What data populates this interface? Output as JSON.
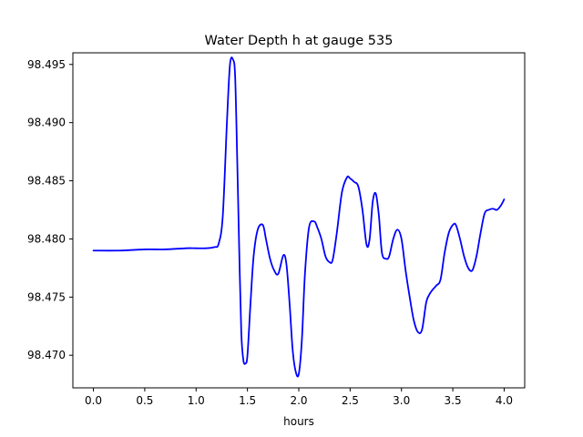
{
  "chart_data": {
    "type": "line",
    "title": "Water Depth h at gauge 535",
    "xlabel": "hours",
    "ylabel": "",
    "xlim": [
      -0.2,
      4.2
    ],
    "ylim": [
      98.4672,
      98.496
    ],
    "grid": false,
    "x_ticks": [
      0.0,
      0.5,
      1.0,
      1.5,
      2.0,
      2.5,
      3.0,
      3.5,
      4.0
    ],
    "x_tick_labels": [
      "0.0",
      "0.5",
      "1.0",
      "1.5",
      "2.0",
      "2.5",
      "3.0",
      "3.5",
      "4.0"
    ],
    "y_ticks": [
      98.47,
      98.475,
      98.48,
      98.485,
      98.49,
      98.495
    ],
    "y_tick_labels": [
      "98.470",
      "98.475",
      "98.480",
      "98.485",
      "98.490",
      "98.495"
    ],
    "series": [
      {
        "color": "#0000ff",
        "x": [
          0.0,
          0.25,
          0.5,
          0.7,
          0.9,
          1.0,
          1.1,
          1.18,
          1.22,
          1.26,
          1.3,
          1.33,
          1.36,
          1.38,
          1.4,
          1.42,
          1.44,
          1.46,
          1.48,
          1.5,
          1.53,
          1.56,
          1.6,
          1.65,
          1.68,
          1.72,
          1.76,
          1.8,
          1.85,
          1.88,
          1.91,
          1.94,
          1.97,
          2.0,
          2.03,
          2.06,
          2.1,
          2.15,
          2.18,
          2.22,
          2.26,
          2.3,
          2.33,
          2.37,
          2.42,
          2.47,
          2.5,
          2.54,
          2.58,
          2.62,
          2.66,
          2.69,
          2.72,
          2.75,
          2.78,
          2.81,
          2.85,
          2.88,
          2.92,
          2.96,
          3.0,
          3.04,
          3.08,
          3.12,
          3.16,
          3.2,
          3.24,
          3.27,
          3.3,
          3.34,
          3.38,
          3.42,
          3.46,
          3.5,
          3.53,
          3.57,
          3.61,
          3.65,
          3.69,
          3.73,
          3.77,
          3.81,
          3.85,
          3.89,
          3.93,
          3.97,
          4.0
        ],
        "y": [
          98.479,
          98.479,
          98.4791,
          98.4791,
          98.4792,
          98.4792,
          98.4792,
          98.4793,
          98.4796,
          98.482,
          98.49,
          98.495,
          98.4954,
          98.494,
          98.487,
          98.479,
          98.472,
          98.4696,
          98.4693,
          98.47,
          98.4745,
          98.4785,
          98.4808,
          98.4812,
          98.48,
          98.4783,
          98.4773,
          98.477,
          98.4786,
          98.4778,
          98.4745,
          98.4705,
          98.4686,
          98.4684,
          98.4713,
          98.477,
          98.481,
          98.4815,
          98.481,
          98.48,
          98.4785,
          98.478,
          98.4782,
          98.4805,
          98.484,
          98.4853,
          98.4852,
          98.4849,
          98.4845,
          98.4825,
          98.4795,
          98.48,
          98.4832,
          98.4839,
          98.482,
          98.4788,
          98.4783,
          98.4785,
          98.48,
          98.4808,
          98.48,
          98.4773,
          98.475,
          98.473,
          98.472,
          98.4722,
          98.4745,
          98.4752,
          98.4756,
          98.476,
          98.4765,
          98.4788,
          98.4805,
          98.4812,
          98.4812,
          98.48,
          98.4785,
          98.4775,
          98.4773,
          98.4785,
          98.4805,
          98.4822,
          98.4825,
          98.4826,
          98.4825,
          98.4829,
          98.4834
        ]
      }
    ]
  }
}
